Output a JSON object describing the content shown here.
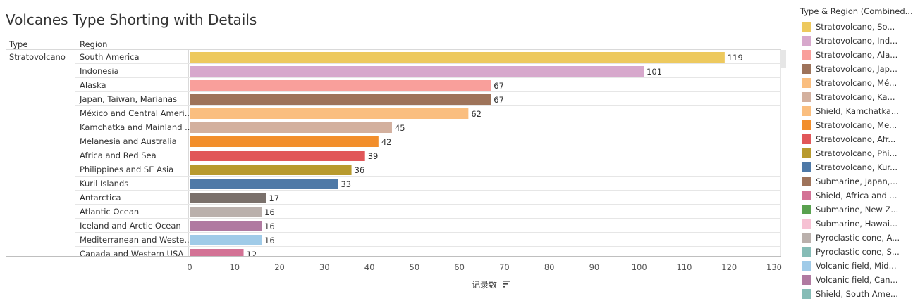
{
  "title": "Volcanes Type Shorting with Details",
  "columns": {
    "type": "Type",
    "region": "Region"
  },
  "legend": {
    "title": "Type & Region (Combined...",
    "items": [
      {
        "label": "Stratovolcano, So...",
        "color": "#EDC95E"
      },
      {
        "label": "Stratovolcano, Ind...",
        "color": "#D7A8CC"
      },
      {
        "label": "Stratovolcano, Ala...",
        "color": "#F99F9B"
      },
      {
        "label": "Stratovolcano, Jap...",
        "color": "#9E735A"
      },
      {
        "label": "Stratovolcano, Mé...",
        "color": "#FABE7F"
      },
      {
        "label": "Stratovolcano, Ka...",
        "color": "#D3B09E"
      },
      {
        "label": "Shield, Kamchatka...",
        "color": "#FABE7F"
      },
      {
        "label": "Stratovolcano, Me...",
        "color": "#F28E2B"
      },
      {
        "label": "Stratovolcano, Afr...",
        "color": "#E15759"
      },
      {
        "label": "Stratovolcano, Phi...",
        "color": "#B89A2E"
      },
      {
        "label": "Stratovolcano, Kur...",
        "color": "#4E79A7"
      },
      {
        "label": "Submarine, Japan,...",
        "color": "#9E735A"
      },
      {
        "label": "Shield, Africa and ...",
        "color": "#D37295"
      },
      {
        "label": "Submarine, New Z...",
        "color": "#59A14F"
      },
      {
        "label": "Submarine, Hawai...",
        "color": "#F6C1D3"
      },
      {
        "label": "Pyroclastic cone, A...",
        "color": "#BAB0AC"
      },
      {
        "label": "Pyroclastic cone, S...",
        "color": "#86BCB6"
      },
      {
        "label": "Volcanic field, Mid...",
        "color": "#A0CBE8"
      },
      {
        "label": "Volcanic field, Can...",
        "color": "#B07AA1"
      },
      {
        "label": "Shield, South Ame...",
        "color": "#86BCB6"
      }
    ]
  },
  "chart_data": {
    "type": "bar",
    "orientation": "horizontal",
    "title": "Volcanes Type Shorting with Details",
    "xlabel": "记录数",
    "xlim": [
      0,
      130
    ],
    "xticks": [
      0,
      10,
      20,
      30,
      40,
      50,
      60,
      70,
      80,
      90,
      100,
      110,
      120,
      130
    ],
    "type_label": "Stratovolcano",
    "categories": [
      "South America",
      "Indonesia",
      "Alaska",
      "Japan, Taiwan, Marianas",
      "México and Central Ameri..",
      "Kamchatka and Mainland ..",
      "Melanesia and Australia",
      "Africa and Red Sea",
      "Philippines and SE Asia",
      "Kuril Islands",
      "Antarctica",
      "Atlantic Ocean",
      "Iceland and Arctic Ocean",
      "Mediterranean and Weste..",
      "Canada and Western USA"
    ],
    "values": [
      119,
      101,
      67,
      67,
      62,
      45,
      42,
      39,
      36,
      33,
      17,
      16,
      16,
      16,
      12
    ],
    "colors": [
      "#EDC95E",
      "#D7A8CC",
      "#F99F9B",
      "#9E735A",
      "#FABE7F",
      "#D3B09E",
      "#F28E2B",
      "#E15759",
      "#B89A2E",
      "#4E79A7",
      "#7A706B",
      "#BAB0AC",
      "#B07AA1",
      "#A0CBE8",
      "#D37295"
    ]
  }
}
